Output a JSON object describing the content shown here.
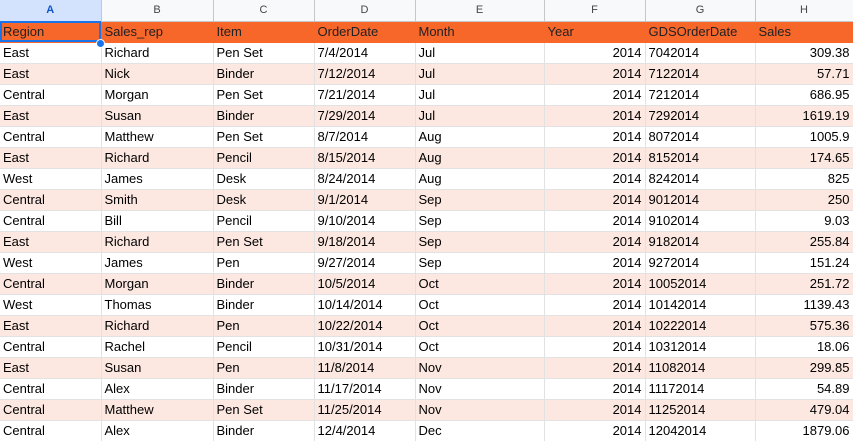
{
  "columns": [
    "A",
    "B",
    "C",
    "D",
    "E",
    "F",
    "G",
    "H"
  ],
  "header": {
    "region": "Region",
    "sales_rep": "Sales_rep",
    "item": "Item",
    "order_date": "OrderDate",
    "month": "Month",
    "year": "Year",
    "gds_order_date": "GDSOrderDate",
    "sales": "Sales"
  },
  "rows": [
    [
      "East",
      "Richard",
      "Pen Set",
      "7/4/2014",
      "Jul",
      "2014",
      "7042014",
      "309.38"
    ],
    [
      "East",
      "Nick",
      "Binder",
      "7/12/2014",
      "Jul",
      "2014",
      "7122014",
      "57.71"
    ],
    [
      "Central",
      "Morgan",
      "Pen Set",
      "7/21/2014",
      "Jul",
      "2014",
      "7212014",
      "686.95"
    ],
    [
      "East",
      "Susan",
      "Binder",
      "7/29/2014",
      "Jul",
      "2014",
      "7292014",
      "1619.19"
    ],
    [
      "Central",
      "Matthew",
      "Pen Set",
      "8/7/2014",
      "Aug",
      "2014",
      "8072014",
      "1005.9"
    ],
    [
      "East",
      "Richard",
      "Pencil",
      "8/15/2014",
      "Aug",
      "2014",
      "8152014",
      "174.65"
    ],
    [
      "West",
      "James",
      "Desk",
      "8/24/2014",
      "Aug",
      "2014",
      "8242014",
      "825"
    ],
    [
      "Central",
      "Smith",
      "Desk",
      "9/1/2014",
      "Sep",
      "2014",
      "9012014",
      "250"
    ],
    [
      "Central",
      "Bill",
      "Pencil",
      "9/10/2014",
      "Sep",
      "2014",
      "9102014",
      "9.03"
    ],
    [
      "East",
      "Richard",
      "Pen Set",
      "9/18/2014",
      "Sep",
      "2014",
      "9182014",
      "255.84"
    ],
    [
      "West",
      "James",
      "Pen",
      "9/27/2014",
      "Sep",
      "2014",
      "9272014",
      "151.24"
    ],
    [
      "Central",
      "Morgan",
      "Binder",
      "10/5/2014",
      "Oct",
      "2014",
      "10052014",
      "251.72"
    ],
    [
      "West",
      "Thomas",
      "Binder",
      "10/14/2014",
      "Oct",
      "2014",
      "10142014",
      "1139.43"
    ],
    [
      "East",
      "Richard",
      "Pen",
      "10/22/2014",
      "Oct",
      "2014",
      "10222014",
      "575.36"
    ],
    [
      "Central",
      "Rachel",
      "Pencil",
      "10/31/2014",
      "Oct",
      "2014",
      "10312014",
      "18.06"
    ],
    [
      "East",
      "Susan",
      "Pen",
      "11/8/2014",
      "Nov",
      "2014",
      "11082014",
      "299.85"
    ],
    [
      "Central",
      "Alex",
      "Binder",
      "11/17/2014",
      "Nov",
      "2014",
      "11172014",
      "54.89"
    ],
    [
      "Central",
      "Matthew",
      "Pen Set",
      "11/25/2014",
      "Nov",
      "2014",
      "11252014",
      "479.04"
    ],
    [
      "Central",
      "Alex",
      "Binder",
      "12/4/2014",
      "Dec",
      "2014",
      "12042014",
      "1879.06"
    ]
  ],
  "colors": {
    "header_fill": "#f7672a",
    "stripe_fill": "#fde8e1",
    "selection": "#1a73e8"
  }
}
